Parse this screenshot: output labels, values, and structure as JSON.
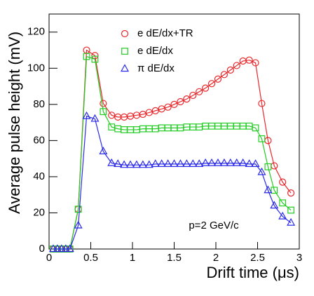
{
  "chart_data": {
    "type": "line",
    "x": [
      0.05,
      0.1,
      0.15,
      0.2,
      0.25,
      0.35,
      0.45,
      0.55,
      0.65,
      0.75,
      0.825,
      0.9,
      0.975,
      1.05,
      1.125,
      1.2,
      1.275,
      1.35,
      1.425,
      1.5,
      1.575,
      1.65,
      1.725,
      1.8,
      1.875,
      1.95,
      2.025,
      2.1,
      2.175,
      2.25,
      2.325,
      2.4,
      2.475,
      2.55,
      2.625,
      2.7,
      2.8,
      2.9
    ],
    "series": [
      {
        "name": "e dE/dx+TR",
        "color": "#e8262a",
        "marker": "circle",
        "values": [
          0,
          0,
          0,
          0,
          0,
          22,
          110,
          107,
          80.5,
          74,
          73,
          73,
          73.5,
          74,
          74.5,
          75.5,
          76.5,
          77.5,
          78.5,
          80,
          81.5,
          83,
          85,
          87,
          89,
          91.5,
          94,
          96.5,
          99,
          101.5,
          104,
          104.5,
          103,
          80.5,
          60,
          46,
          37,
          31
        ]
      },
      {
        "name": "e dE/dx",
        "color": "#22cc22",
        "marker": "square",
        "values": [
          0,
          0,
          0,
          0,
          0,
          22,
          106.5,
          105,
          76,
          67.5,
          66.5,
          66,
          66,
          66,
          66.5,
          66.5,
          66.5,
          67,
          67,
          67,
          67,
          67.5,
          67.5,
          67.5,
          68,
          68,
          68,
          68,
          68,
          68,
          68,
          68,
          67,
          61,
          45.5,
          32.5,
          25.5,
          21.5
        ]
      },
      {
        "name": "π dE/dx",
        "color": "#2a2ae8",
        "marker": "triangle",
        "values": [
          0,
          0,
          0,
          0,
          0,
          13,
          73.5,
          72,
          54,
          47.5,
          47,
          46.5,
          46.5,
          46.5,
          46.5,
          46.5,
          47,
          47,
          47,
          47,
          47,
          47,
          47,
          47,
          47.5,
          47.5,
          47.5,
          47.5,
          47.5,
          47.5,
          47.5,
          47,
          47,
          42.5,
          32.5,
          24,
          18,
          14.5
        ]
      }
    ],
    "xlabel": "Drift time (μs)",
    "ylabel": "Average pulse height (mV)",
    "annotation": "p=2 GeV/c",
    "xlim": [
      0,
      3
    ],
    "xticks": [
      0,
      0.5,
      1,
      1.5,
      2,
      2.5,
      3
    ],
    "ylim": [
      0,
      130
    ],
    "yticks": [
      0,
      20,
      40,
      60,
      80,
      100,
      120
    ],
    "legend": "upper-left",
    "grid": false
  }
}
